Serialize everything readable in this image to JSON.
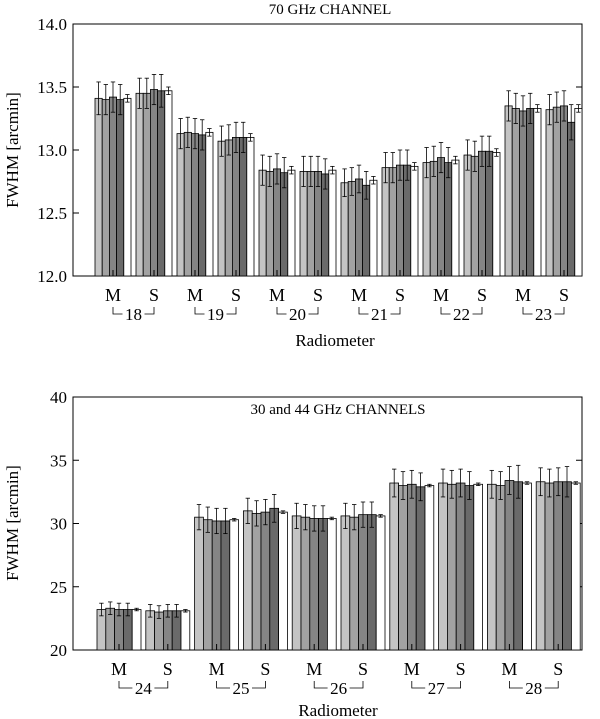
{
  "chart_data": [
    {
      "type": "bar",
      "title": "70 GHz CHANNEL",
      "xlabel": "Radiometer",
      "ylabel": "FWHM [arcmin]",
      "ylim": [
        12.0,
        14.0
      ],
      "yticks": [
        "12.0",
        "12.5",
        "13.0",
        "13.5",
        "14.0"
      ],
      "yticks_values": [
        12.0,
        12.5,
        13.0,
        13.5,
        14.0
      ],
      "tick_labels": [
        "M",
        "S"
      ],
      "series_note": "5 bars per radiometer arm, shades light gray to white",
      "series_colors": [
        "#c4c4c4",
        "#a2a2a2",
        "#858585",
        "#6a6a6a",
        "#ffffff"
      ],
      "radiometers": [
        {
          "label": "18",
          "M": {
            "values": [
              13.41,
              13.4,
              13.42,
              13.4,
              13.41
            ],
            "errors": [
              0.13,
              0.12,
              0.12,
              0.12,
              0.03
            ]
          },
          "S": {
            "values": [
              13.45,
              13.45,
              13.48,
              13.47,
              13.47
            ],
            "errors": [
              0.12,
              0.12,
              0.12,
              0.13,
              0.03
            ]
          }
        },
        {
          "label": "19",
          "M": {
            "values": [
              13.13,
              13.14,
              13.13,
              13.12,
              13.14
            ],
            "errors": [
              0.12,
              0.12,
              0.12,
              0.12,
              0.03
            ]
          },
          "S": {
            "values": [
              13.07,
              13.08,
              13.1,
              13.1,
              13.1
            ],
            "errors": [
              0.12,
              0.12,
              0.12,
              0.12,
              0.03
            ]
          }
        },
        {
          "label": "20",
          "M": {
            "values": [
              12.84,
              12.83,
              12.85,
              12.82,
              12.84
            ],
            "errors": [
              0.12,
              0.12,
              0.12,
              0.12,
              0.03
            ]
          },
          "S": {
            "values": [
              12.83,
              12.83,
              12.83,
              12.81,
              12.84
            ],
            "errors": [
              0.12,
              0.12,
              0.12,
              0.12,
              0.03
            ]
          }
        },
        {
          "label": "21",
          "M": {
            "values": [
              12.74,
              12.75,
              12.77,
              12.72,
              12.76
            ],
            "errors": [
              0.11,
              0.11,
              0.11,
              0.11,
              0.03
            ]
          },
          "S": {
            "values": [
              12.86,
              12.86,
              12.88,
              12.88,
              12.87
            ],
            "errors": [
              0.12,
              0.12,
              0.12,
              0.12,
              0.03
            ]
          }
        },
        {
          "label": "22",
          "M": {
            "values": [
              12.9,
              12.91,
              12.94,
              12.9,
              12.92
            ],
            "errors": [
              0.12,
              0.12,
              0.12,
              0.12,
              0.03
            ]
          },
          "S": {
            "values": [
              12.96,
              12.95,
              12.99,
              12.99,
              12.98
            ],
            "errors": [
              0.12,
              0.12,
              0.12,
              0.12,
              0.03
            ]
          }
        },
        {
          "label": "23",
          "M": {
            "values": [
              13.35,
              13.33,
              13.31,
              13.33,
              13.33
            ],
            "errors": [
              0.12,
              0.12,
              0.12,
              0.12,
              0.03
            ]
          },
          "S": {
            "values": [
              13.32,
              13.34,
              13.35,
              13.22,
              13.33
            ],
            "errors": [
              0.12,
              0.12,
              0.12,
              0.14,
              0.03
            ]
          }
        }
      ]
    },
    {
      "type": "bar",
      "title": "30 and 44 GHz CHANNELS",
      "xlabel": "Radiometer",
      "ylabel": "FWHM [arcmin]",
      "ylim": [
        20,
        40
      ],
      "yticks": [
        "20",
        "25",
        "30",
        "35",
        "40"
      ],
      "yticks_values": [
        20,
        25,
        30,
        35,
        40
      ],
      "tick_labels": [
        "M",
        "S"
      ],
      "series_note": "5 bars per radiometer arm, shades light gray to white",
      "series_colors": [
        "#c4c4c4",
        "#a2a2a2",
        "#858585",
        "#6a6a6a",
        "#ffffff"
      ],
      "radiometers": [
        {
          "label": "24",
          "M": {
            "values": [
              23.2,
              23.3,
              23.2,
              23.2,
              23.2
            ],
            "errors": [
              0.5,
              0.5,
              0.5,
              0.5,
              0.1
            ]
          },
          "S": {
            "values": [
              23.1,
              23.0,
              23.1,
              23.1,
              23.1
            ],
            "errors": [
              0.5,
              0.5,
              0.5,
              0.5,
              0.1
            ]
          }
        },
        {
          "label": "25",
          "M": {
            "values": [
              30.5,
              30.3,
              30.2,
              30.2,
              30.3
            ],
            "errors": [
              1.0,
              1.0,
              1.0,
              1.0,
              0.1
            ]
          },
          "S": {
            "values": [
              31.0,
              30.8,
              30.9,
              31.2,
              30.9
            ],
            "errors": [
              1.0,
              1.0,
              1.0,
              1.1,
              0.1
            ]
          }
        },
        {
          "label": "26",
          "M": {
            "values": [
              30.6,
              30.5,
              30.4,
              30.4,
              30.4
            ],
            "errors": [
              1.0,
              1.0,
              1.0,
              1.0,
              0.1
            ]
          },
          "S": {
            "values": [
              30.6,
              30.5,
              30.7,
              30.7,
              30.6
            ],
            "errors": [
              1.0,
              1.0,
              1.0,
              1.0,
              0.1
            ]
          }
        },
        {
          "label": "27",
          "M": {
            "values": [
              33.2,
              33.0,
              33.1,
              32.9,
              33.0
            ],
            "errors": [
              1.1,
              1.1,
              1.1,
              1.1,
              0.1
            ]
          },
          "S": {
            "values": [
              33.2,
              33.1,
              33.2,
              33.0,
              33.1
            ],
            "errors": [
              1.1,
              1.1,
              1.1,
              1.1,
              0.1
            ]
          }
        },
        {
          "label": "28",
          "M": {
            "values": [
              33.1,
              33.0,
              33.4,
              33.3,
              33.2
            ],
            "errors": [
              1.1,
              1.1,
              1.1,
              1.3,
              0.1
            ]
          },
          "S": {
            "values": [
              33.3,
              33.2,
              33.3,
              33.3,
              33.2
            ],
            "errors": [
              1.1,
              1.1,
              1.1,
              1.2,
              0.1
            ]
          }
        }
      ]
    }
  ]
}
